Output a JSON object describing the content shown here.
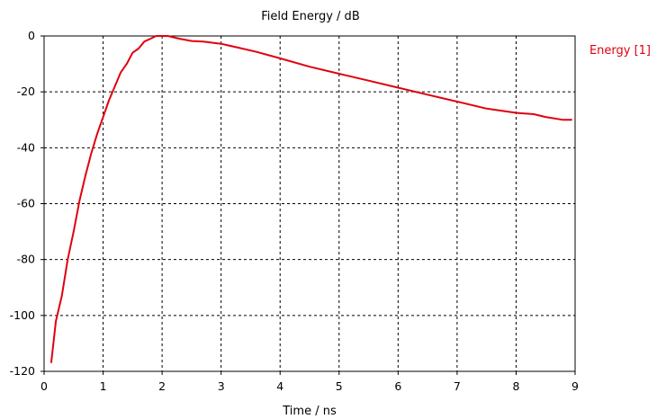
{
  "chart_data": {
    "type": "line",
    "title": "Field Energy / dB",
    "xlabel": "Time / ns",
    "ylabel": "",
    "xlim": [
      0,
      9
    ],
    "ylim": [
      -120,
      0
    ],
    "x_ticks": [
      0,
      1,
      2,
      3,
      4,
      5,
      6,
      7,
      8,
      9
    ],
    "y_ticks": [
      0,
      -20,
      -40,
      -60,
      -80,
      -100,
      -120
    ],
    "grid": true,
    "legend_position": "top-right",
    "series": [
      {
        "name": "Energy [1]",
        "color": "#e0000f",
        "x": [
          0.12,
          0.2,
          0.3,
          0.4,
          0.5,
          0.6,
          0.7,
          0.8,
          0.9,
          1.0,
          1.1,
          1.2,
          1.3,
          1.4,
          1.5,
          1.6,
          1.7,
          1.8,
          1.9,
          2.0,
          2.1,
          2.2,
          2.3,
          2.5,
          2.7,
          3.0,
          3.3,
          3.6,
          4.0,
          4.5,
          5.0,
          5.5,
          6.0,
          6.5,
          7.0,
          7.5,
          8.0,
          8.3,
          8.5,
          8.8,
          8.95
        ],
        "y": [
          -117,
          -102,
          -93,
          -80,
          -70,
          -59,
          -50,
          -42,
          -35,
          -29,
          -23,
          -18,
          -13,
          -10,
          -6,
          -4.5,
          -2,
          -1,
          0,
          0,
          0,
          -0.5,
          -1,
          -1.8,
          -2,
          -2.8,
          -4.2,
          -5.7,
          -8,
          -11,
          -13.5,
          -16,
          -18.5,
          -21,
          -23.5,
          -26,
          -27.5,
          -28,
          -29,
          -30,
          -30
        ]
      }
    ]
  }
}
